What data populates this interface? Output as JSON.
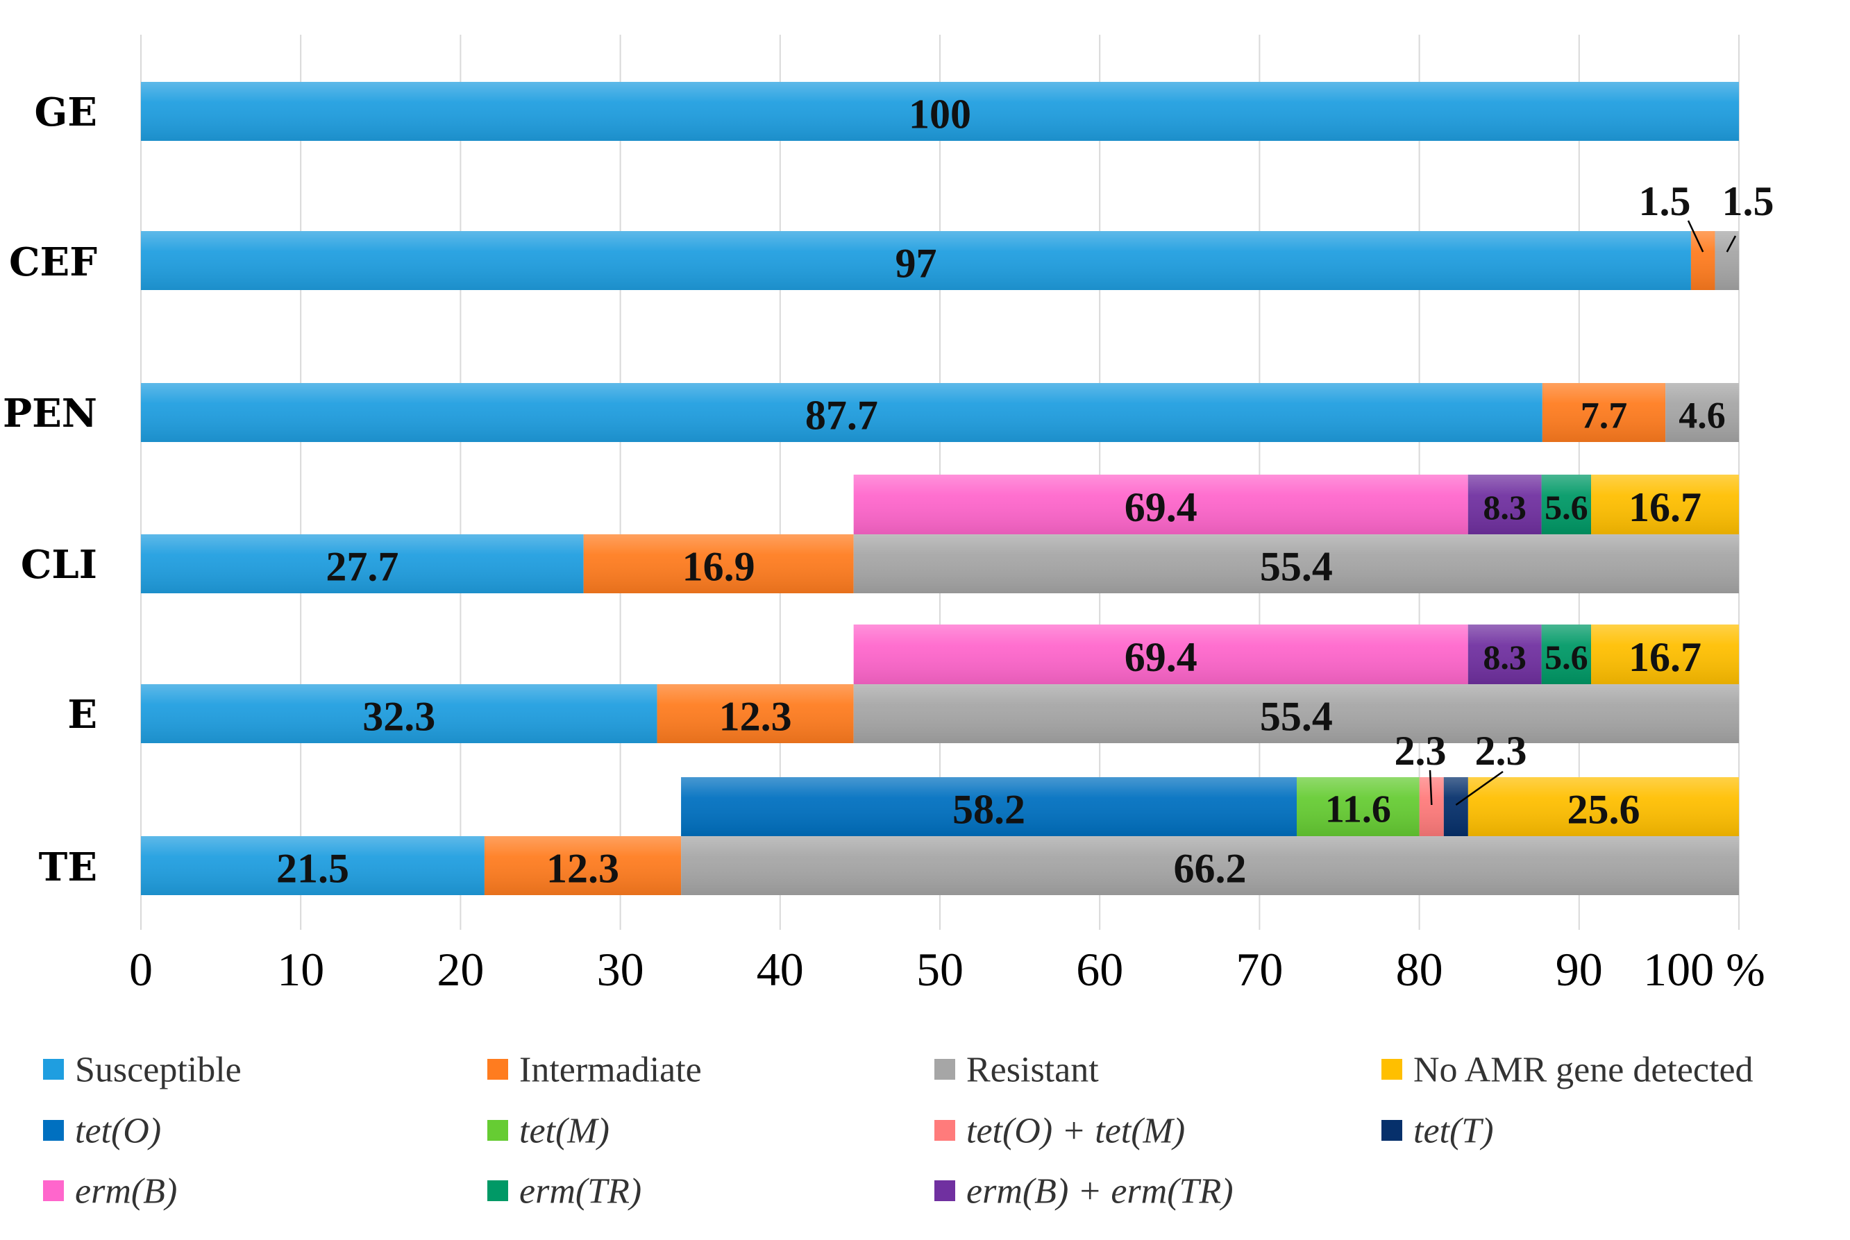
{
  "chart_data": {
    "type": "bar",
    "orientation": "horizontal",
    "stacked": true,
    "title": "",
    "xlabel": "",
    "ylabel": "",
    "x_unit": "%",
    "xlim": [
      0,
      100
    ],
    "xticks": [
      0,
      10,
      20,
      30,
      40,
      50,
      60,
      70,
      80,
      90,
      100
    ],
    "grid": "vertical",
    "legend_position": "bottom",
    "categories": [
      "GE",
      "CEF",
      "PEN",
      "CLI",
      "E",
      "TE"
    ],
    "series": [
      {
        "name": "Susceptible",
        "color": "#1f9ee0",
        "values": [
          100,
          97.0,
          87.7,
          27.7,
          32.3,
          21.5
        ]
      },
      {
        "name": "Intermadiate",
        "color": "#ff7c1f",
        "values": [
          0,
          1.5,
          7.7,
          16.9,
          12.3,
          12.3
        ]
      },
      {
        "name": "Resistant",
        "color": "#a6a6a6",
        "values": [
          0,
          1.5,
          4.6,
          55.4,
          55.4,
          66.2
        ]
      }
    ],
    "gene_series": [
      {
        "name": "tet(O)",
        "color": "#0070c0",
        "category": "TE",
        "value": 58.2
      },
      {
        "name": "tet(M)",
        "color": "#66cc33",
        "category": "TE",
        "value": 11.6
      },
      {
        "name": "tet(O) + tet(M)",
        "color": "#ff7b7b",
        "category": "TE",
        "value": 2.3
      },
      {
        "name": "tet(T)",
        "color": "#06306b",
        "category": "TE",
        "value": 2.3
      },
      {
        "name": "No AMR gene detected",
        "color": "#ffbf00",
        "category": "TE",
        "value": 25.6
      },
      {
        "name": "erm(B)",
        "color": "#ff66cc",
        "category": "CLI",
        "value": 69.4
      },
      {
        "name": "erm(B) + erm(TR)",
        "color": "#7030a0",
        "category": "CLI",
        "value": 8.3
      },
      {
        "name": "erm(TR)",
        "color": "#009966",
        "category": "CLI",
        "value": 5.6
      },
      {
        "name": "No AMR gene detected",
        "color": "#ffbf00",
        "category": "CLI",
        "value": 16.7
      },
      {
        "name": "erm(B)",
        "color": "#ff66cc",
        "category": "E",
        "value": 69.4
      },
      {
        "name": "erm(B) + erm(TR)",
        "color": "#7030a0",
        "category": "E",
        "value": 8.3
      },
      {
        "name": "erm(TR)",
        "color": "#009966",
        "category": "E",
        "value": 5.6
      },
      {
        "name": "No AMR gene detected",
        "color": "#ffbf00",
        "category": "E",
        "value": 16.7
      }
    ],
    "gene_breakdown_scope": "resistant fraction",
    "legend": [
      {
        "name": "Susceptible",
        "color": "#1f9ee0",
        "italic": false
      },
      {
        "name": "Intermadiate",
        "color": "#ff7c1f",
        "italic": false
      },
      {
        "name": "Resistant",
        "color": "#a6a6a6",
        "italic": false
      },
      {
        "name": "No AMR gene detected",
        "color": "#ffbf00",
        "italic": false
      },
      {
        "name": "tet(O)",
        "color": "#0070c0",
        "italic": true
      },
      {
        "name": "tet(M)",
        "color": "#66cc33",
        "italic": true
      },
      {
        "name": "tet(O) + tet(M)",
        "color": "#ff7b7b",
        "italic": true
      },
      {
        "name": "tet(T)",
        "color": "#06306b",
        "italic": true
      },
      {
        "name": "erm(B)",
        "color": "#ff66cc",
        "italic": true
      },
      {
        "name": "erm(TR)",
        "color": "#009966",
        "italic": true
      },
      {
        "name": "erm(B) + erm(TR)",
        "color": "#7030a0",
        "italic": true
      }
    ]
  }
}
